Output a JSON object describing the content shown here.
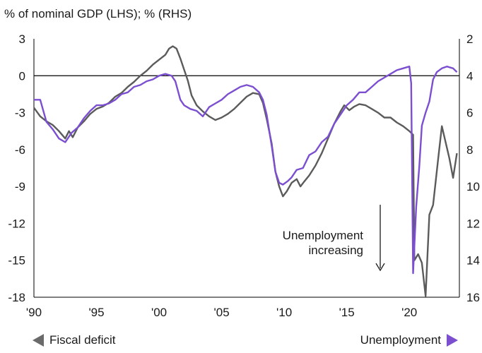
{
  "subtitle": "% of nominal GDP (LHS); % (RHS)",
  "annotation": [
    "Unemployment",
    "increasing"
  ],
  "legend": {
    "left": "Fiscal deficit",
    "right": "Unemployment"
  },
  "colors": {
    "deficit": "#5b5b5b",
    "unemployment": "#7b4fd0",
    "axis": "#000000",
    "grid": "#d9d9d9"
  },
  "chart_data": {
    "type": "line",
    "xlim": [
      1990,
      2024
    ],
    "x_ticks": [
      1990,
      1995,
      2000,
      2005,
      2010,
      2015,
      2020
    ],
    "x_tick_labels": [
      "'90",
      "'95",
      "'00",
      "'05",
      "'10",
      "'15",
      "'20"
    ],
    "ylim_left": [
      -18,
      3
    ],
    "y_ticks_left": [
      3,
      0,
      -3,
      -6,
      -9,
      -12,
      -15,
      -18
    ],
    "ylim_right": [
      2,
      16
    ],
    "right_axis_inverted": true,
    "y_ticks_right": [
      2,
      4,
      6,
      8,
      10,
      12,
      14,
      16
    ],
    "series": [
      {
        "name": "Fiscal deficit",
        "axis": "left",
        "points": [
          [
            1990.0,
            -2.6
          ],
          [
            1990.5,
            -3.3
          ],
          [
            1991.0,
            -3.7
          ],
          [
            1991.5,
            -4.0
          ],
          [
            1992.0,
            -4.5
          ],
          [
            1992.5,
            -5.1
          ],
          [
            1992.8,
            -4.5
          ],
          [
            1993.1,
            -5.0
          ],
          [
            1993.5,
            -4.2
          ],
          [
            1994.0,
            -3.7
          ],
          [
            1994.5,
            -3.1
          ],
          [
            1995.0,
            -2.7
          ],
          [
            1995.5,
            -2.5
          ],
          [
            1996.0,
            -2.2
          ],
          [
            1996.5,
            -1.7
          ],
          [
            1997.0,
            -1.4
          ],
          [
            1997.5,
            -0.9
          ],
          [
            1998.0,
            -0.5
          ],
          [
            1998.5,
            0.0
          ],
          [
            1999.0,
            0.4
          ],
          [
            1999.5,
            0.9
          ],
          [
            2000.0,
            1.3
          ],
          [
            2000.5,
            1.7
          ],
          [
            2000.8,
            2.2
          ],
          [
            2001.1,
            2.4
          ],
          [
            2001.4,
            2.2
          ],
          [
            2001.7,
            1.4
          ],
          [
            2002.0,
            0.5
          ],
          [
            2002.3,
            -0.4
          ],
          [
            2002.6,
            -1.6
          ],
          [
            2003.0,
            -2.4
          ],
          [
            2003.5,
            -2.9
          ],
          [
            2004.0,
            -3.3
          ],
          [
            2004.5,
            -3.6
          ],
          [
            2005.0,
            -3.4
          ],
          [
            2005.5,
            -3.1
          ],
          [
            2006.0,
            -2.7
          ],
          [
            2006.5,
            -2.2
          ],
          [
            2007.0,
            -1.7
          ],
          [
            2007.5,
            -1.4
          ],
          [
            2008.0,
            -1.5
          ],
          [
            2008.3,
            -2.2
          ],
          [
            2008.6,
            -3.5
          ],
          [
            2009.0,
            -5.5
          ],
          [
            2009.3,
            -7.8
          ],
          [
            2009.6,
            -9.0
          ],
          [
            2009.9,
            -9.8
          ],
          [
            2010.2,
            -9.4
          ],
          [
            2010.6,
            -8.7
          ],
          [
            2011.0,
            -8.4
          ],
          [
            2011.3,
            -9.0
          ],
          [
            2011.6,
            -8.6
          ],
          [
            2012.0,
            -8.1
          ],
          [
            2012.5,
            -7.3
          ],
          [
            2013.0,
            -6.3
          ],
          [
            2013.5,
            -5.1
          ],
          [
            2014.0,
            -3.9
          ],
          [
            2014.5,
            -2.9
          ],
          [
            2014.8,
            -2.4
          ],
          [
            2015.2,
            -2.8
          ],
          [
            2015.6,
            -2.5
          ],
          [
            2016.0,
            -2.3
          ],
          [
            2016.5,
            -2.4
          ],
          [
            2017.0,
            -2.7
          ],
          [
            2017.5,
            -3.0
          ],
          [
            2018.0,
            -3.4
          ],
          [
            2018.5,
            -3.4
          ],
          [
            2019.0,
            -3.8
          ],
          [
            2019.5,
            -4.1
          ],
          [
            2020.0,
            -4.5
          ],
          [
            2020.3,
            -4.8
          ],
          [
            2020.4,
            -15.0
          ],
          [
            2020.7,
            -14.5
          ],
          [
            2021.0,
            -15.2
          ],
          [
            2021.3,
            -17.9
          ],
          [
            2021.6,
            -11.3
          ],
          [
            2021.9,
            -10.5
          ],
          [
            2022.3,
            -6.8
          ],
          [
            2022.6,
            -4.1
          ],
          [
            2022.9,
            -5.4
          ],
          [
            2023.2,
            -6.7
          ],
          [
            2023.5,
            -8.3
          ],
          [
            2023.8,
            -6.3
          ]
        ]
      },
      {
        "name": "Unemployment",
        "axis": "right",
        "points": [
          [
            1990.0,
            5.3
          ],
          [
            1990.5,
            5.3
          ],
          [
            1991.0,
            6.5
          ],
          [
            1991.5,
            6.9
          ],
          [
            1992.0,
            7.4
          ],
          [
            1992.5,
            7.6
          ],
          [
            1993.0,
            7.1
          ],
          [
            1993.5,
            6.8
          ],
          [
            1994.0,
            6.3
          ],
          [
            1994.5,
            5.9
          ],
          [
            1995.0,
            5.6
          ],
          [
            1995.5,
            5.6
          ],
          [
            1996.0,
            5.5
          ],
          [
            1996.5,
            5.3
          ],
          [
            1997.0,
            5.0
          ],
          [
            1997.5,
            4.9
          ],
          [
            1998.0,
            4.6
          ],
          [
            1998.5,
            4.5
          ],
          [
            1999.0,
            4.3
          ],
          [
            1999.5,
            4.2
          ],
          [
            2000.0,
            4.0
          ],
          [
            2000.5,
            3.9
          ],
          [
            2001.0,
            4.0
          ],
          [
            2001.3,
            4.3
          ],
          [
            2001.7,
            5.3
          ],
          [
            2002.0,
            5.6
          ],
          [
            2002.5,
            5.8
          ],
          [
            2003.0,
            5.9
          ],
          [
            2003.5,
            6.2
          ],
          [
            2004.0,
            5.7
          ],
          [
            2004.5,
            5.5
          ],
          [
            2005.0,
            5.3
          ],
          [
            2005.5,
            5.0
          ],
          [
            2006.0,
            4.8
          ],
          [
            2006.5,
            4.6
          ],
          [
            2007.0,
            4.5
          ],
          [
            2007.5,
            4.6
          ],
          [
            2008.0,
            4.9
          ],
          [
            2008.3,
            5.3
          ],
          [
            2008.6,
            6.1
          ],
          [
            2009.0,
            7.8
          ],
          [
            2009.3,
            9.2
          ],
          [
            2009.6,
            9.8
          ],
          [
            2009.9,
            9.9
          ],
          [
            2010.3,
            9.7
          ],
          [
            2010.6,
            9.5
          ],
          [
            2011.0,
            9.1
          ],
          [
            2011.5,
            9.0
          ],
          [
            2012.0,
            8.3
          ],
          [
            2012.5,
            8.1
          ],
          [
            2013.0,
            7.6
          ],
          [
            2013.5,
            7.3
          ],
          [
            2014.0,
            6.6
          ],
          [
            2014.5,
            6.1
          ],
          [
            2015.0,
            5.6
          ],
          [
            2015.5,
            5.3
          ],
          [
            2016.0,
            4.9
          ],
          [
            2016.5,
            4.9
          ],
          [
            2017.0,
            4.6
          ],
          [
            2017.5,
            4.3
          ],
          [
            2018.0,
            4.1
          ],
          [
            2018.5,
            3.9
          ],
          [
            2019.0,
            3.7
          ],
          [
            2019.5,
            3.6
          ],
          [
            2020.0,
            3.5
          ],
          [
            2020.15,
            4.4
          ],
          [
            2020.3,
            14.7
          ],
          [
            2020.55,
            11.1
          ],
          [
            2020.8,
            8.9
          ],
          [
            2021.0,
            6.7
          ],
          [
            2021.3,
            6.0
          ],
          [
            2021.6,
            5.4
          ],
          [
            2021.9,
            4.2
          ],
          [
            2022.2,
            3.8
          ],
          [
            2022.6,
            3.6
          ],
          [
            2023.0,
            3.5
          ],
          [
            2023.5,
            3.6
          ],
          [
            2023.8,
            3.8
          ]
        ]
      }
    ]
  }
}
